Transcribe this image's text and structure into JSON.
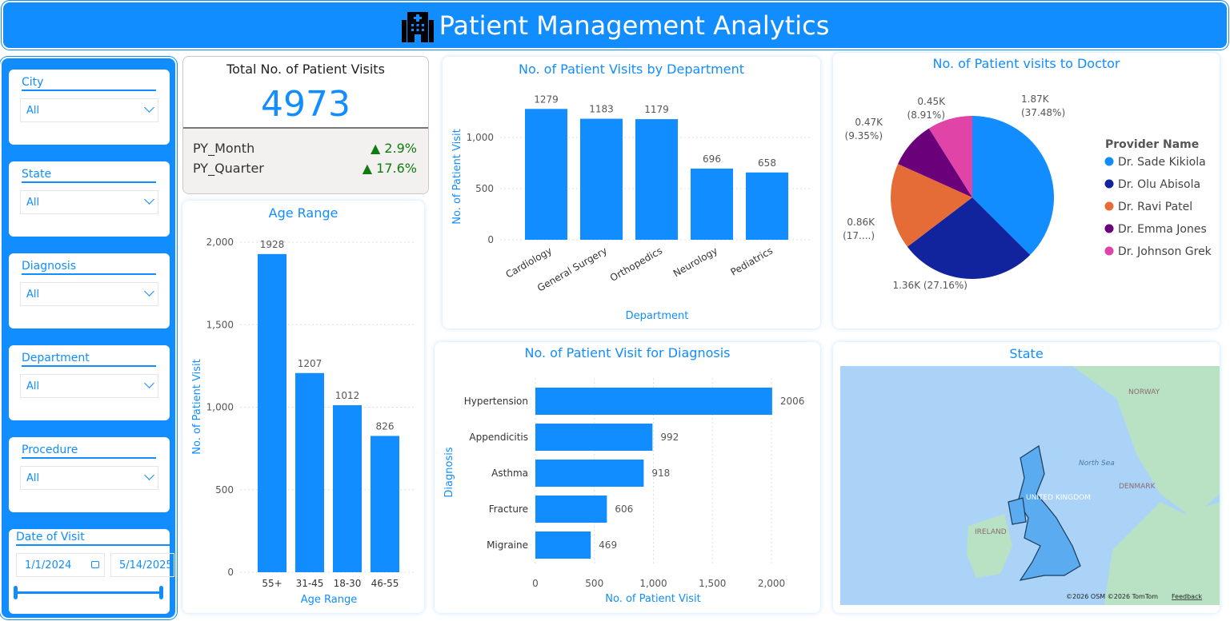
{
  "header": {
    "title": "Patient Management Analytics",
    "icon": "hospital-icon"
  },
  "filters": [
    {
      "label": "City",
      "value": "All"
    },
    {
      "label": "State",
      "value": "All"
    },
    {
      "label": "Diagnosis",
      "value": "All"
    },
    {
      "label": "Department",
      "value": "All"
    },
    {
      "label": "Procedure",
      "value": "All"
    }
  ],
  "date_filter": {
    "label": "Date of Visit",
    "start": "1/1/2024",
    "end": "5/14/2025"
  },
  "kpi": {
    "title": "Total No. of Patient Visits",
    "value": "4973",
    "rows": [
      {
        "label": "PY_Month",
        "value": "2.9%"
      },
      {
        "label": "PY_Quarter",
        "value": "17.6%"
      }
    ],
    "up_color": "#107C10"
  },
  "colors": {
    "accent": "#118DFF"
  },
  "chart_data": [
    {
      "id": "age",
      "type": "bar",
      "title": "Age Range",
      "xlabel": "Age Range",
      "ylabel": "No. of Patient Visit",
      "categories": [
        "55+",
        "31-45",
        "18-30",
        "46-55"
      ],
      "values": [
        1928,
        1207,
        1012,
        826
      ],
      "ylim": [
        0,
        2000
      ],
      "yticks": [
        "0",
        "500",
        "1,000",
        "1,500",
        "2,000"
      ],
      "grid": true
    },
    {
      "id": "dept",
      "type": "bar",
      "title": "No. of Patient Visits by Department",
      "xlabel": "Department",
      "ylabel": "No. of Patient Visit",
      "categories": [
        "Cardiology",
        "General Surgery",
        "Orthopedics",
        "Neurology",
        "Pediatrics"
      ],
      "values": [
        1279,
        1183,
        1179,
        696,
        658
      ],
      "yticks": [
        "0",
        "500",
        "1,000"
      ],
      "grid": true
    },
    {
      "id": "diag",
      "type": "bar",
      "orientation": "horizontal",
      "title": "No. of Patient Visit for Diagnosis",
      "xlabel": "No. of Patient Visit",
      "ylabel": "Diagnosis",
      "categories": [
        "Hypertension",
        "Appendicitis",
        "Asthma",
        "Fracture",
        "Migraine"
      ],
      "values": [
        2006,
        992,
        918,
        606,
        469
      ],
      "xlim": [
        0,
        2000
      ],
      "xticks": [
        "0",
        "500",
        "1,000",
        "1,500",
        "2,000"
      ],
      "grid": true
    },
    {
      "id": "pie",
      "type": "pie",
      "title": "No. of Patient visits to Doctor",
      "legend_title": "Provider Name",
      "legend": "right",
      "slices": [
        {
          "name": "Dr. Sade Kikiola",
          "label": "1.87K",
          "pct": "(37.48%)",
          "value": 37.48,
          "color": "#118DFF"
        },
        {
          "name": "Dr. Olu Abisola",
          "label": "1.36K",
          "pct": "(27.16%)",
          "value": 27.16,
          "color": "#12239E"
        },
        {
          "name": "Dr. Ravi Patel",
          "label": "0.86K",
          "pct": "(17....)",
          "value": 17.1,
          "color": "#E66C37"
        },
        {
          "name": "Dr. Emma Jones",
          "label": "0.47K",
          "pct": "(9.35%)",
          "value": 9.35,
          "color": "#6B007B"
        },
        {
          "name": "Dr. Johnson Grek",
          "label": "0.45K",
          "pct": "(8.91%)",
          "value": 8.91,
          "color": "#E044A7"
        }
      ]
    }
  ],
  "map": {
    "title": "State",
    "labels": [
      "NORWAY",
      "North Sea",
      "DENMARK",
      "UNITED KINGDOM",
      "IRELAND"
    ],
    "attribution": "©2026 OSM  ©2026 TomTom",
    "feedback": "Feedback"
  }
}
